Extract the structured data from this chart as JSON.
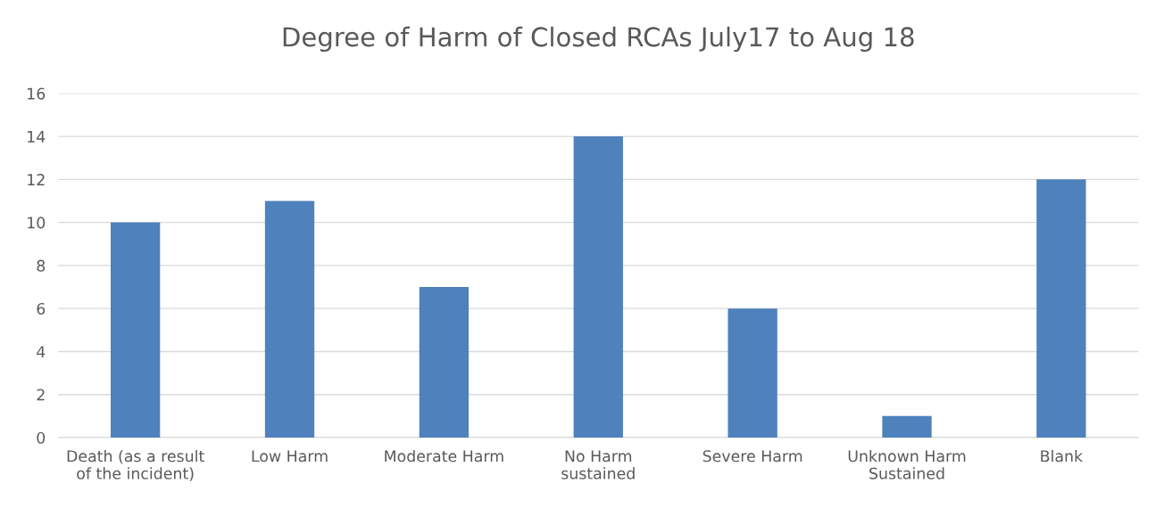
{
  "chart_data": {
    "type": "bar",
    "title": "Degree of Harm of Closed RCAs July17 to Aug 18",
    "categories": [
      "Death (as a result\nof the incident)",
      "Low Harm",
      "Moderate Harm",
      "No Harm\nsustained",
      "Severe Harm",
      "Unknown Harm\nSustained",
      "Blank"
    ],
    "values": [
      10,
      11,
      7,
      14,
      6,
      1,
      12
    ],
    "color": "#4f81bd",
    "ylim": [
      0,
      16
    ],
    "yticks": [
      0,
      2,
      4,
      6,
      8,
      10,
      12,
      14,
      16
    ],
    "grid": "y",
    "legend": false
  }
}
